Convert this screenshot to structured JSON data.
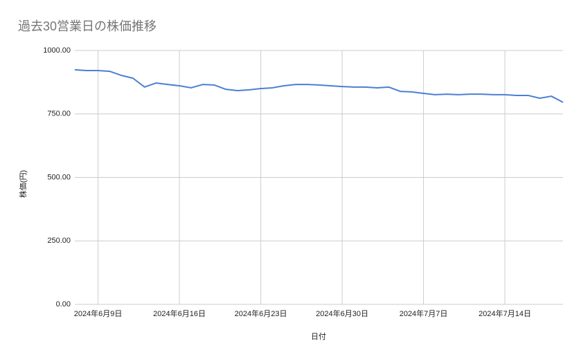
{
  "chart_data": {
    "type": "line",
    "title": "過去30営業日の株価推移",
    "x_label": "日付",
    "y_label": "株価(円)",
    "x": [
      "2024-06-07",
      "2024-06-08",
      "2024-06-09",
      "2024-06-10",
      "2024-06-11",
      "2024-06-12",
      "2024-06-13",
      "2024-06-14",
      "2024-06-15",
      "2024-06-16",
      "2024-06-17",
      "2024-06-18",
      "2024-06-19",
      "2024-06-20",
      "2024-06-21",
      "2024-06-22",
      "2024-06-23",
      "2024-06-24",
      "2024-06-25",
      "2024-06-26",
      "2024-06-27",
      "2024-06-28",
      "2024-06-29",
      "2024-06-30",
      "2024-07-01",
      "2024-07-02",
      "2024-07-03",
      "2024-07-04",
      "2024-07-05",
      "2024-07-06",
      "2024-07-07",
      "2024-07-08",
      "2024-07-09",
      "2024-07-10",
      "2024-07-11",
      "2024-07-12",
      "2024-07-13",
      "2024-07-14",
      "2024-07-15",
      "2024-07-16",
      "2024-07-17",
      "2024-07-18",
      "2024-07-19"
    ],
    "series": [
      {
        "name": "株価",
        "color": "#4a7fd4",
        "values": [
          924,
          921,
          921,
          918,
          902,
          891,
          856,
          872,
          866,
          861,
          853,
          866,
          864,
          847,
          842,
          845,
          850,
          853,
          861,
          866,
          866,
          864,
          861,
          858,
          856,
          856,
          853,
          856,
          839,
          837,
          831,
          826,
          828,
          826,
          828,
          828,
          826,
          826,
          823,
          823,
          812,
          820,
          796
        ]
      }
    ],
    "xlim": [
      "2024-06-07",
      "2024-07-19"
    ],
    "xticks": [
      {
        "value": "2024-06-09",
        "label": "2024年6月9日"
      },
      {
        "value": "2024-06-16",
        "label": "2024年6月16日"
      },
      {
        "value": "2024-06-23",
        "label": "2024年6月23日"
      },
      {
        "value": "2024-06-30",
        "label": "2024年6月30日"
      },
      {
        "value": "2024-07-07",
        "label": "2024年7月7日"
      },
      {
        "value": "2024-07-14",
        "label": "2024年7月14日"
      }
    ],
    "ylim": [
      0,
      1000
    ],
    "yticks": [
      {
        "value": 0,
        "label": "0.00"
      },
      {
        "value": 250,
        "label": "250.00"
      },
      {
        "value": 500,
        "label": "500.00"
      },
      {
        "value": 750,
        "label": "750.00"
      },
      {
        "value": 1000,
        "label": "1000.00"
      }
    ],
    "grid": true
  }
}
